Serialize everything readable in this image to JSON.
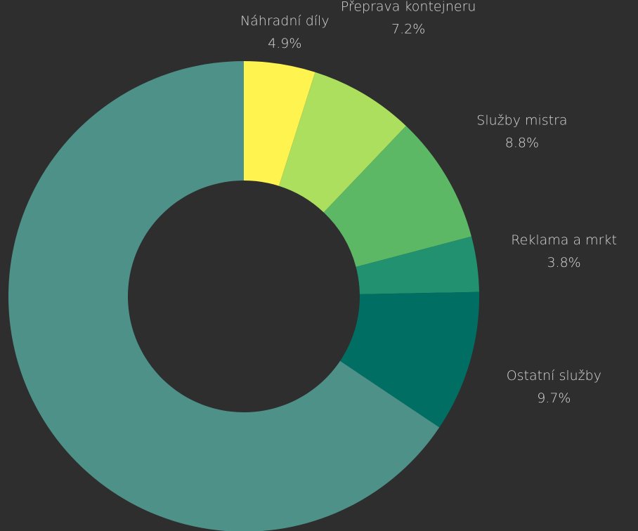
{
  "chart_data": {
    "type": "donut",
    "categories": [
      "Náhradní díly",
      "Přeprava kontejneru",
      "Služby mistra",
      "Reklama a mrkt",
      "Ostatní služby",
      null
    ],
    "values": [
      4.9,
      7.2,
      8.8,
      3.8,
      9.7,
      65.6
    ],
    "value_labels": [
      "4.9%",
      "7.2%",
      "8.8%",
      "3.8%",
      "9.7%",
      null
    ],
    "colors": [
      "#fff44f",
      "#addf5e",
      "#5cb865",
      "#22916f",
      "#006e62",
      "#4e9189"
    ]
  }
}
